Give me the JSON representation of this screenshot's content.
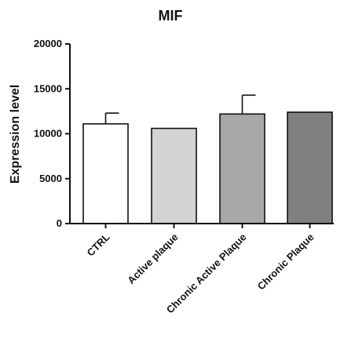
{
  "chart_data": {
    "type": "bar",
    "title": "MIF",
    "xlabel": "",
    "ylabel": "Expression level",
    "ylim": [
      0,
      20000
    ],
    "yticks": [
      0,
      5000,
      10000,
      15000,
      20000
    ],
    "categories": [
      "CTRL",
      "Active plaque",
      "Chronic Active Plaque",
      "Chronic Plaque"
    ],
    "values": [
      11100,
      10600,
      12200,
      12400
    ],
    "error_upper": [
      1200,
      0,
      2100,
      0
    ],
    "grid": false,
    "legend": "none",
    "colors": [
      "#ffffff",
      "#d3d3d3",
      "#a8a8a8",
      "#808080"
    ],
    "stroke_color": "#111111"
  }
}
